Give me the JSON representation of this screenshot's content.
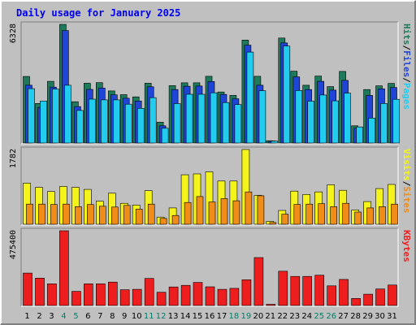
{
  "chart_data": {
    "type": "bar",
    "title": "Daily usage for January 2025",
    "categories": [
      "1",
      "2",
      "3",
      "4",
      "5",
      "6",
      "7",
      "8",
      "9",
      "10",
      "11",
      "12",
      "13",
      "14",
      "15",
      "16",
      "17",
      "18",
      "19",
      "20",
      "21",
      "22",
      "23",
      "24",
      "25",
      "26",
      "27",
      "28",
      "29",
      "30",
      "31"
    ],
    "weekend_days": [
      "4",
      "5",
      "11",
      "12",
      "18",
      "19",
      "25",
      "26"
    ],
    "panels": [
      {
        "id": "hits-files-pages",
        "ymax_label": "6328",
        "ymax": 6328,
        "series": [
          {
            "name": "Hits",
            "color": "#1e7a5a",
            "values": [
              3550,
              2110,
              3290,
              6328,
              2200,
              3190,
              3220,
              2780,
              2580,
              2460,
              3190,
              1110,
              3060,
              3210,
              3210,
              3560,
              2720,
              2540,
              5490,
              3560,
              120,
              5600,
              3830,
              3080,
              3570,
              3010,
              3820,
              920,
              2850,
              3050,
              3180
            ]
          },
          {
            "name": "Files",
            "color": "#1e44d8",
            "values": [
              3080,
              1900,
              2980,
              6000,
              1940,
              2860,
              2930,
              2570,
              2390,
              2240,
              3000,
              920,
              2850,
              3030,
              3040,
              3280,
              2590,
              2360,
              5220,
              3080,
              110,
              5340,
              3530,
              2850,
              3290,
              2820,
              3340,
              790,
              2540,
              2890,
              2960
            ]
          },
          {
            "name": "Pages",
            "color": "#22ccee",
            "values": [
              2900,
              2240,
              2880,
              3080,
              1740,
              2340,
              2300,
              2300,
              2070,
              1850,
              2420,
              790,
              2100,
              2600,
              2600,
              2680,
              2160,
              2050,
              4850,
              2790,
              100,
              5170,
              2800,
              2230,
              2560,
              2250,
              2660,
              860,
              1330,
              2110,
              2330
            ]
          }
        ]
      },
      {
        "id": "visits-sites",
        "ymax_label": "1782",
        "ymax": 1782,
        "series": [
          {
            "name": "Visits",
            "color": "#f4f41c",
            "values": [
              980,
              880,
              780,
              900,
              880,
              830,
              550,
              740,
              500,
              460,
              800,
              170,
              390,
              1180,
              1200,
              1250,
              1030,
              1030,
              1782,
              690,
              70,
              330,
              790,
              710,
              770,
              940,
              810,
              340,
              540,
              850,
              950
            ]
          },
          {
            "name": "Sites",
            "color": "#f08c18",
            "values": [
              480,
              480,
              470,
              480,
              420,
              470,
              430,
              410,
              450,
              360,
              480,
              140,
              210,
              520,
              660,
              530,
              610,
              560,
              770,
              680,
              40,
              240,
              470,
              480,
              490,
              420,
              500,
              290,
              390,
              420,
              480
            ]
          }
        ]
      },
      {
        "id": "kbytes",
        "ymax_label": "475400",
        "ymax": 475400,
        "series": [
          {
            "name": "KBytes",
            "color": "#ee1e1e",
            "values": [
              206000,
              174000,
              138000,
              475400,
              90000,
              138000,
              138000,
              149000,
              100000,
              103000,
              172000,
              84000,
              118000,
              128000,
              147000,
              119000,
              103000,
              109000,
              164000,
              305000,
              8000,
              218000,
              185000,
              185000,
              193000,
              125000,
              166000,
              45000,
              72000,
              105000,
              130000
            ]
          }
        ]
      }
    ],
    "legend": {
      "top_parts": [
        "Pages",
        "/",
        "Files",
        "/",
        "Hits"
      ],
      "mid_parts": [
        "Sites",
        "/",
        "Visits"
      ],
      "bottom_parts": [
        "KBytes"
      ]
    },
    "colors": {
      "background": "#c0c0c0",
      "panel_bg": "#c0c0c0",
      "title_color": "#0000ee",
      "weekday_label_color": "#000000",
      "weekend_label_color": "#00806a",
      "bevel_light": "#ffffff",
      "bevel_dark": "#808080"
    }
  }
}
